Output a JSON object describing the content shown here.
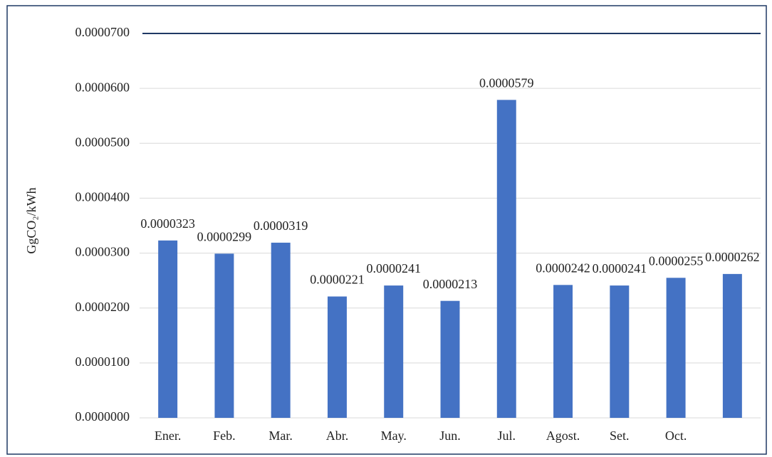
{
  "chart_data": {
    "type": "bar",
    "y_axis_label": "GgCO₂/kWh",
    "categories": [
      "Ener.",
      "Feb.",
      "Mar.",
      "Abr.",
      "May.",
      "Jun.",
      "Jul.",
      "Agost.",
      "Set.",
      "Oct.",
      null
    ],
    "values": [
      3.23e-05,
      2.99e-05,
      3.19e-05,
      2.21e-05,
      2.41e-05,
      2.13e-05,
      5.79e-05,
      2.42e-05,
      2.41e-05,
      2.55e-05,
      2.62e-05
    ],
    "color": "#4472c4",
    "ylim": [
      0,
      7e-05
    ],
    "yticks": [
      {
        "value": 0,
        "label": "0.0000000"
      },
      {
        "value": 1e-05,
        "label": "0.0000100"
      },
      {
        "value": 2e-05,
        "label": "0.0000200"
      },
      {
        "value": 3e-05,
        "label": "0.0000300"
      },
      {
        "value": 4e-05,
        "label": "0.0000400"
      },
      {
        "value": 5e-05,
        "label": "0.0000500"
      },
      {
        "value": 6e-05,
        "label": "0.0000600"
      },
      {
        "value": 7e-05,
        "label": "0.0000700"
      }
    ],
    "grid": true
  }
}
